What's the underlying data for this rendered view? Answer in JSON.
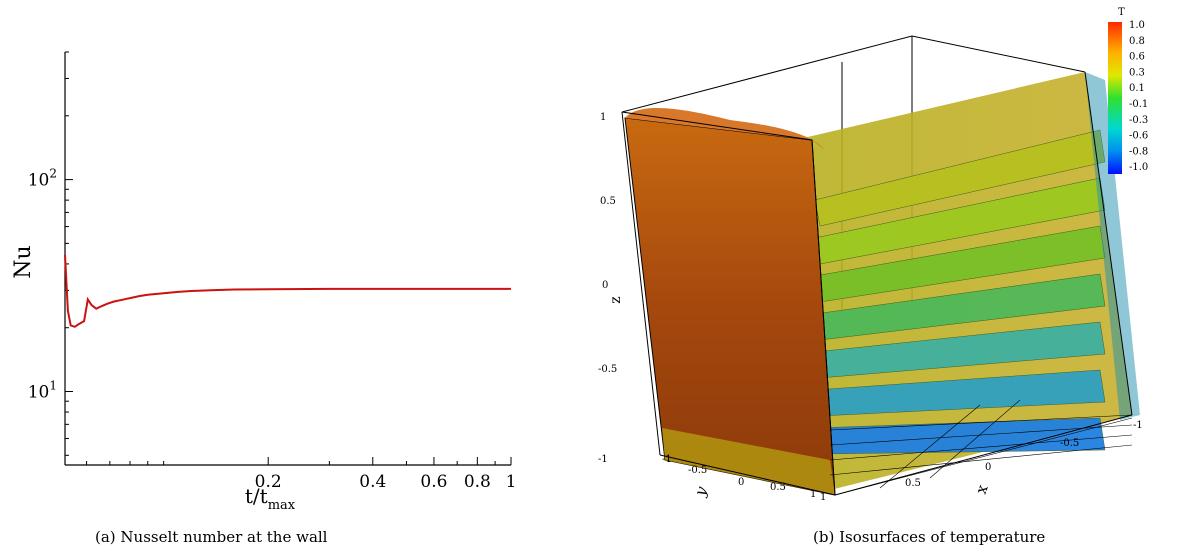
{
  "chart_data": [
    {
      "type": "line",
      "xlabel": "t/t",
      "xlabel_sub": "max",
      "ylabel": "Nu",
      "scale": "log-log",
      "xlim": [
        0.052,
        1.0
      ],
      "ylim": [
        4.5,
        400
      ],
      "x_ticks": [
        "0.2",
        "0.4",
        "0.6",
        "0.8",
        "1"
      ],
      "x_tick_values": [
        0.2,
        0.4,
        0.6,
        0.8,
        1.0
      ],
      "y_ticks": [
        {
          "base": "10",
          "exp": "2",
          "value": 100
        },
        {
          "base": "10",
          "exp": "1",
          "value": 10
        }
      ],
      "series": [
        {
          "color": "#cc1111",
          "x": [
            0.052,
            0.053,
            0.054,
            0.0555,
            0.057,
            0.059,
            0.0605,
            0.062,
            0.064,
            0.066,
            0.069,
            0.072,
            0.076,
            0.08,
            0.085,
            0.09,
            0.1,
            0.11,
            0.12,
            0.14,
            0.16,
            0.2,
            0.3,
            0.5,
            0.7,
            1.0
          ],
          "y": [
            44,
            24,
            20.5,
            20.2,
            20.8,
            21.5,
            27.2,
            25.6,
            24.6,
            25.2,
            26.0,
            26.6,
            27.1,
            27.6,
            28.2,
            28.6,
            29.1,
            29.5,
            29.8,
            30.1,
            30.3,
            30.4,
            30.5,
            30.5,
            30.5,
            30.5
          ]
        }
      ]
    },
    {
      "type": "3d-isosurface",
      "axis_labels": {
        "x": "x",
        "y": "y",
        "z": "z"
      },
      "z_ticks": [
        "1",
        "0.5",
        "0",
        "-0.5",
        "-1"
      ],
      "y_ticks": [
        "-1",
        "-0.5",
        "0",
        "0.5",
        "1"
      ],
      "x_ticks": [
        "1",
        "0.5",
        "0",
        "-0.5",
        "-1"
      ],
      "colorbar": {
        "title": "T",
        "levels": [
          "1.0",
          "0.8",
          "0.6",
          "0.3",
          "0.1",
          "-0.1",
          "-0.3",
          "-0.6",
          "-0.8",
          "-1.0"
        ],
        "colors": [
          "#ff2a00",
          "#ff8c00",
          "#e8e000",
          "#a0e000",
          "#20d020",
          "#00d070",
          "#00d0c0",
          "#00a0e0",
          "#1050f0",
          "#0010ff"
        ]
      }
    }
  ],
  "captions": {
    "a": "(a) Nusselt number at the wall",
    "b": "(b) Isosurfaces of temperature"
  }
}
